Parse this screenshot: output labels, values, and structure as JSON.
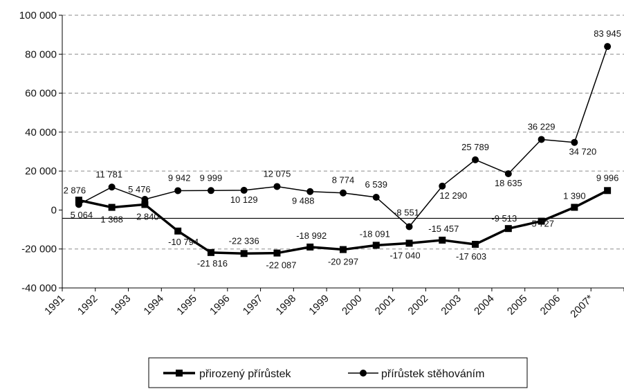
{
  "chart_data": {
    "type": "line",
    "categories": [
      "1991",
      "1992",
      "1993",
      "1994",
      "1995",
      "1996",
      "1997",
      "1998",
      "1999",
      "2000",
      "2001",
      "2002",
      "2003",
      "2004",
      "2005",
      "2006",
      "2007*"
    ],
    "ylim": [
      -40000,
      100000
    ],
    "y_ticks": [
      -40000,
      -20000,
      0,
      20000,
      40000,
      60000,
      80000,
      100000
    ],
    "y_tick_labels": [
      "-40 000",
      "-20 000",
      "0",
      "20 000",
      "40 000",
      "60 000",
      "80 000",
      "100 000"
    ],
    "grid": "horizontal dashed",
    "legend_position": "bottom",
    "series": [
      {
        "name": "přirozený přírůstek",
        "marker": "square",
        "line": "thick",
        "color": "#000000",
        "values": [
          5064,
          1368,
          2840,
          -10794,
          -21816,
          -22336,
          -22087,
          -18992,
          -20297,
          -18091,
          -17040,
          -15457,
          -17603,
          -9513,
          -5727,
          1390,
          9996
        ],
        "labels": [
          "5 064",
          "1 368",
          "2 840",
          "-10 794",
          "-21 816",
          "-22 336",
          "-22 087",
          "-18 992",
          "-20 297",
          "-18 091",
          "-17 040",
          "-15 457",
          "-17 603",
          "-9 513",
          "-5 727",
          "1 390",
          "9 996"
        ]
      },
      {
        "name": "přírůstek stěhováním",
        "marker": "circle",
        "line": "thin",
        "color": "#000000",
        "values": [
          2876,
          11781,
          5476,
          9942,
          9999,
          10129,
          12075,
          9488,
          8774,
          6539,
          -8551,
          12290,
          25789,
          18635,
          36229,
          34720,
          83945
        ],
        "labels": [
          "2 876",
          "11 781",
          "5 476",
          "9 942",
          "9 999",
          "10 129",
          "12 075",
          "9 488",
          "8 774",
          "6 539",
          "-8 551",
          "12 290",
          "25 789",
          "18 635",
          "36 229",
          "34 720",
          "83 945"
        ]
      }
    ]
  }
}
